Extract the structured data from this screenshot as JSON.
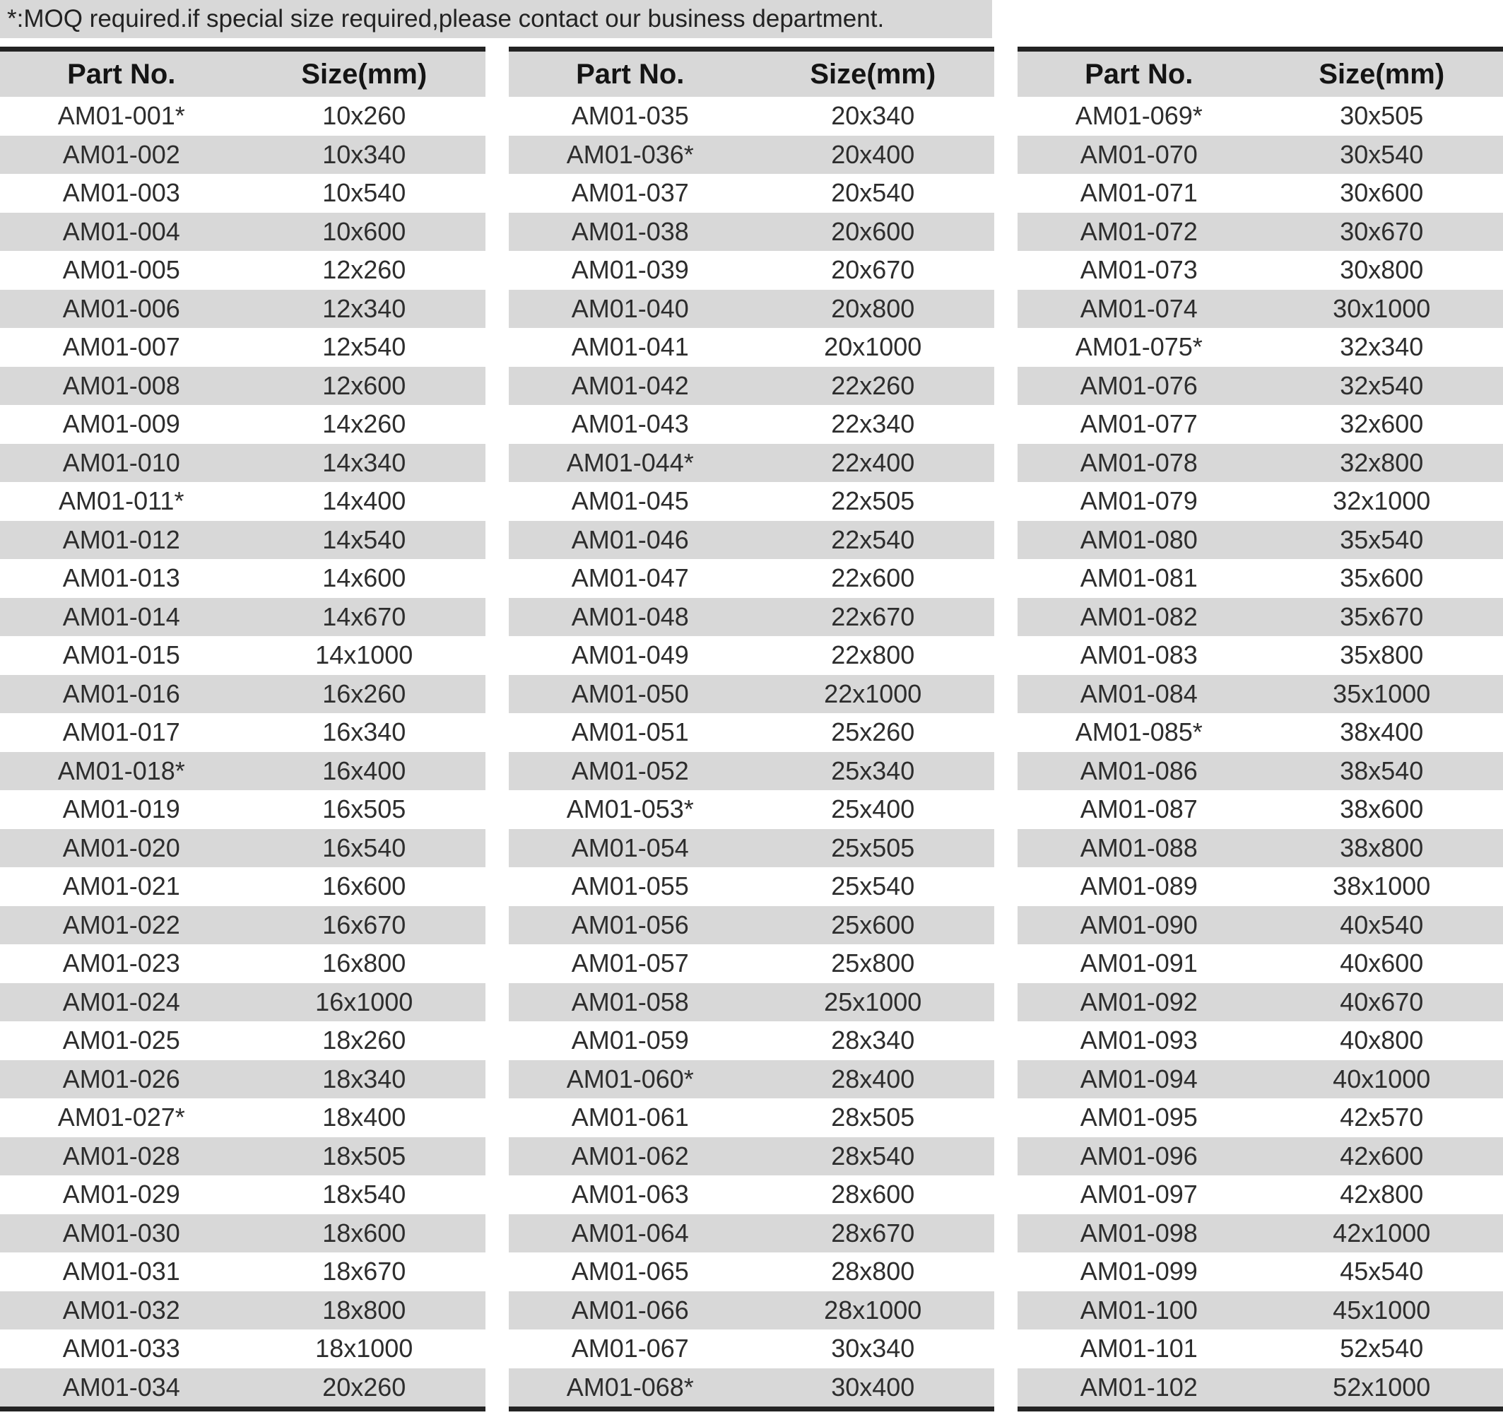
{
  "note": "*:MOQ required.if special size required,please contact our business department.",
  "headers": {
    "part": "Part No.",
    "size": "Size(mm)"
  },
  "colors": {
    "stripe": "#d8d8d8",
    "note_bg": "#d8d8d8",
    "rule": "#232323",
    "text": "#2d2d2d"
  },
  "tables": [
    {
      "rows": [
        [
          "AM01-001*",
          "10x260"
        ],
        [
          "AM01-002",
          "10x340"
        ],
        [
          "AM01-003",
          "10x540"
        ],
        [
          "AM01-004",
          "10x600"
        ],
        [
          "AM01-005",
          "12x260"
        ],
        [
          "AM01-006",
          "12x340"
        ],
        [
          "AM01-007",
          "12x540"
        ],
        [
          "AM01-008",
          "12x600"
        ],
        [
          "AM01-009",
          "14x260"
        ],
        [
          "AM01-010",
          "14x340"
        ],
        [
          "AM01-011*",
          "14x400"
        ],
        [
          "AM01-012",
          "14x540"
        ],
        [
          "AM01-013",
          "14x600"
        ],
        [
          "AM01-014",
          "14x670"
        ],
        [
          "AM01-015",
          "14x1000"
        ],
        [
          "AM01-016",
          "16x260"
        ],
        [
          "AM01-017",
          "16x340"
        ],
        [
          "AM01-018*",
          "16x400"
        ],
        [
          "AM01-019",
          "16x505"
        ],
        [
          "AM01-020",
          "16x540"
        ],
        [
          "AM01-021",
          "16x600"
        ],
        [
          "AM01-022",
          "16x670"
        ],
        [
          "AM01-023",
          "16x800"
        ],
        [
          "AM01-024",
          "16x1000"
        ],
        [
          "AM01-025",
          "18x260"
        ],
        [
          "AM01-026",
          "18x340"
        ],
        [
          "AM01-027*",
          "18x400"
        ],
        [
          "AM01-028",
          "18x505"
        ],
        [
          "AM01-029",
          "18x540"
        ],
        [
          "AM01-030",
          "18x600"
        ],
        [
          "AM01-031",
          "18x670"
        ],
        [
          "AM01-032",
          "18x800"
        ],
        [
          "AM01-033",
          "18x1000"
        ],
        [
          "AM01-034",
          "20x260"
        ]
      ]
    },
    {
      "rows": [
        [
          "AM01-035",
          "20x340"
        ],
        [
          "AM01-036*",
          "20x400"
        ],
        [
          "AM01-037",
          "20x540"
        ],
        [
          "AM01-038",
          "20x600"
        ],
        [
          "AM01-039",
          "20x670"
        ],
        [
          "AM01-040",
          "20x800"
        ],
        [
          "AM01-041",
          "20x1000"
        ],
        [
          "AM01-042",
          "22x260"
        ],
        [
          "AM01-043",
          "22x340"
        ],
        [
          "AM01-044*",
          "22x400"
        ],
        [
          "AM01-045",
          "22x505"
        ],
        [
          "AM01-046",
          "22x540"
        ],
        [
          "AM01-047",
          "22x600"
        ],
        [
          "AM01-048",
          "22x670"
        ],
        [
          "AM01-049",
          "22x800"
        ],
        [
          "AM01-050",
          "22x1000"
        ],
        [
          "AM01-051",
          "25x260"
        ],
        [
          "AM01-052",
          "25x340"
        ],
        [
          "AM01-053*",
          "25x400"
        ],
        [
          "AM01-054",
          "25x505"
        ],
        [
          "AM01-055",
          "25x540"
        ],
        [
          "AM01-056",
          "25x600"
        ],
        [
          "AM01-057",
          "25x800"
        ],
        [
          "AM01-058",
          "25x1000"
        ],
        [
          "AM01-059",
          "28x340"
        ],
        [
          "AM01-060*",
          "28x400"
        ],
        [
          "AM01-061",
          "28x505"
        ],
        [
          "AM01-062",
          "28x540"
        ],
        [
          "AM01-063",
          "28x600"
        ],
        [
          "AM01-064",
          "28x670"
        ],
        [
          "AM01-065",
          "28x800"
        ],
        [
          "AM01-066",
          "28x1000"
        ],
        [
          "AM01-067",
          "30x340"
        ],
        [
          "AM01-068*",
          "30x400"
        ]
      ]
    },
    {
      "rows": [
        [
          "AM01-069*",
          "30x505"
        ],
        [
          "AM01-070",
          "30x540"
        ],
        [
          "AM01-071",
          "30x600"
        ],
        [
          "AM01-072",
          "30x670"
        ],
        [
          "AM01-073",
          "30x800"
        ],
        [
          "AM01-074",
          "30x1000"
        ],
        [
          "AM01-075*",
          "32x340"
        ],
        [
          "AM01-076",
          "32x540"
        ],
        [
          "AM01-077",
          "32x600"
        ],
        [
          "AM01-078",
          "32x800"
        ],
        [
          "AM01-079",
          "32x1000"
        ],
        [
          "AM01-080",
          "35x540"
        ],
        [
          "AM01-081",
          "35x600"
        ],
        [
          "AM01-082",
          "35x670"
        ],
        [
          "AM01-083",
          "35x800"
        ],
        [
          "AM01-084",
          "35x1000"
        ],
        [
          "AM01-085*",
          "38x400"
        ],
        [
          "AM01-086",
          "38x540"
        ],
        [
          "AM01-087",
          "38x600"
        ],
        [
          "AM01-088",
          "38x800"
        ],
        [
          "AM01-089",
          "38x1000"
        ],
        [
          "AM01-090",
          "40x540"
        ],
        [
          "AM01-091",
          "40x600"
        ],
        [
          "AM01-092",
          "40x670"
        ],
        [
          "AM01-093",
          "40x800"
        ],
        [
          "AM01-094",
          "40x1000"
        ],
        [
          "AM01-095",
          "42x570"
        ],
        [
          "AM01-096",
          "42x600"
        ],
        [
          "AM01-097",
          "42x800"
        ],
        [
          "AM01-098",
          "42x1000"
        ],
        [
          "AM01-099",
          "45x540"
        ],
        [
          "AM01-100",
          "45x1000"
        ],
        [
          "AM01-101",
          "52x540"
        ],
        [
          "AM01-102",
          "52x1000"
        ]
      ]
    }
  ]
}
